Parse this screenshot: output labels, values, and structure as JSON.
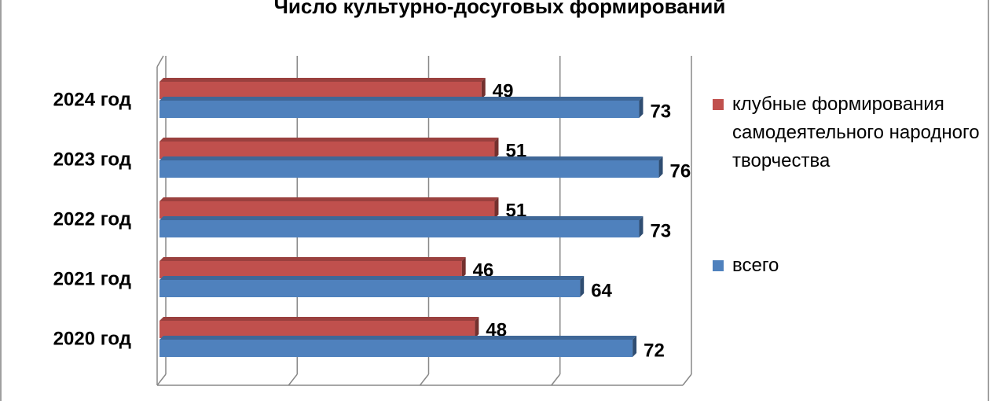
{
  "chart_data": {
    "type": "bar",
    "orientation": "horizontal",
    "title": "Число культурно-досуговых формирований",
    "categories": [
      "2020 год",
      "2021 год",
      "2022 год",
      "2023 год",
      "2024 год"
    ],
    "series": [
      {
        "name": "клубные формирования самодеятельного народного творчества",
        "color": "#c0504d",
        "values": [
          48,
          46,
          51,
          51,
          49
        ]
      },
      {
        "name": "всего",
        "color": "#4f81bd",
        "values": [
          72,
          64,
          73,
          76,
          73
        ]
      }
    ],
    "xlim": [
      0,
      80
    ],
    "xticks": [
      0,
      20,
      40,
      60,
      80
    ],
    "grid": true,
    "legend": "right"
  }
}
